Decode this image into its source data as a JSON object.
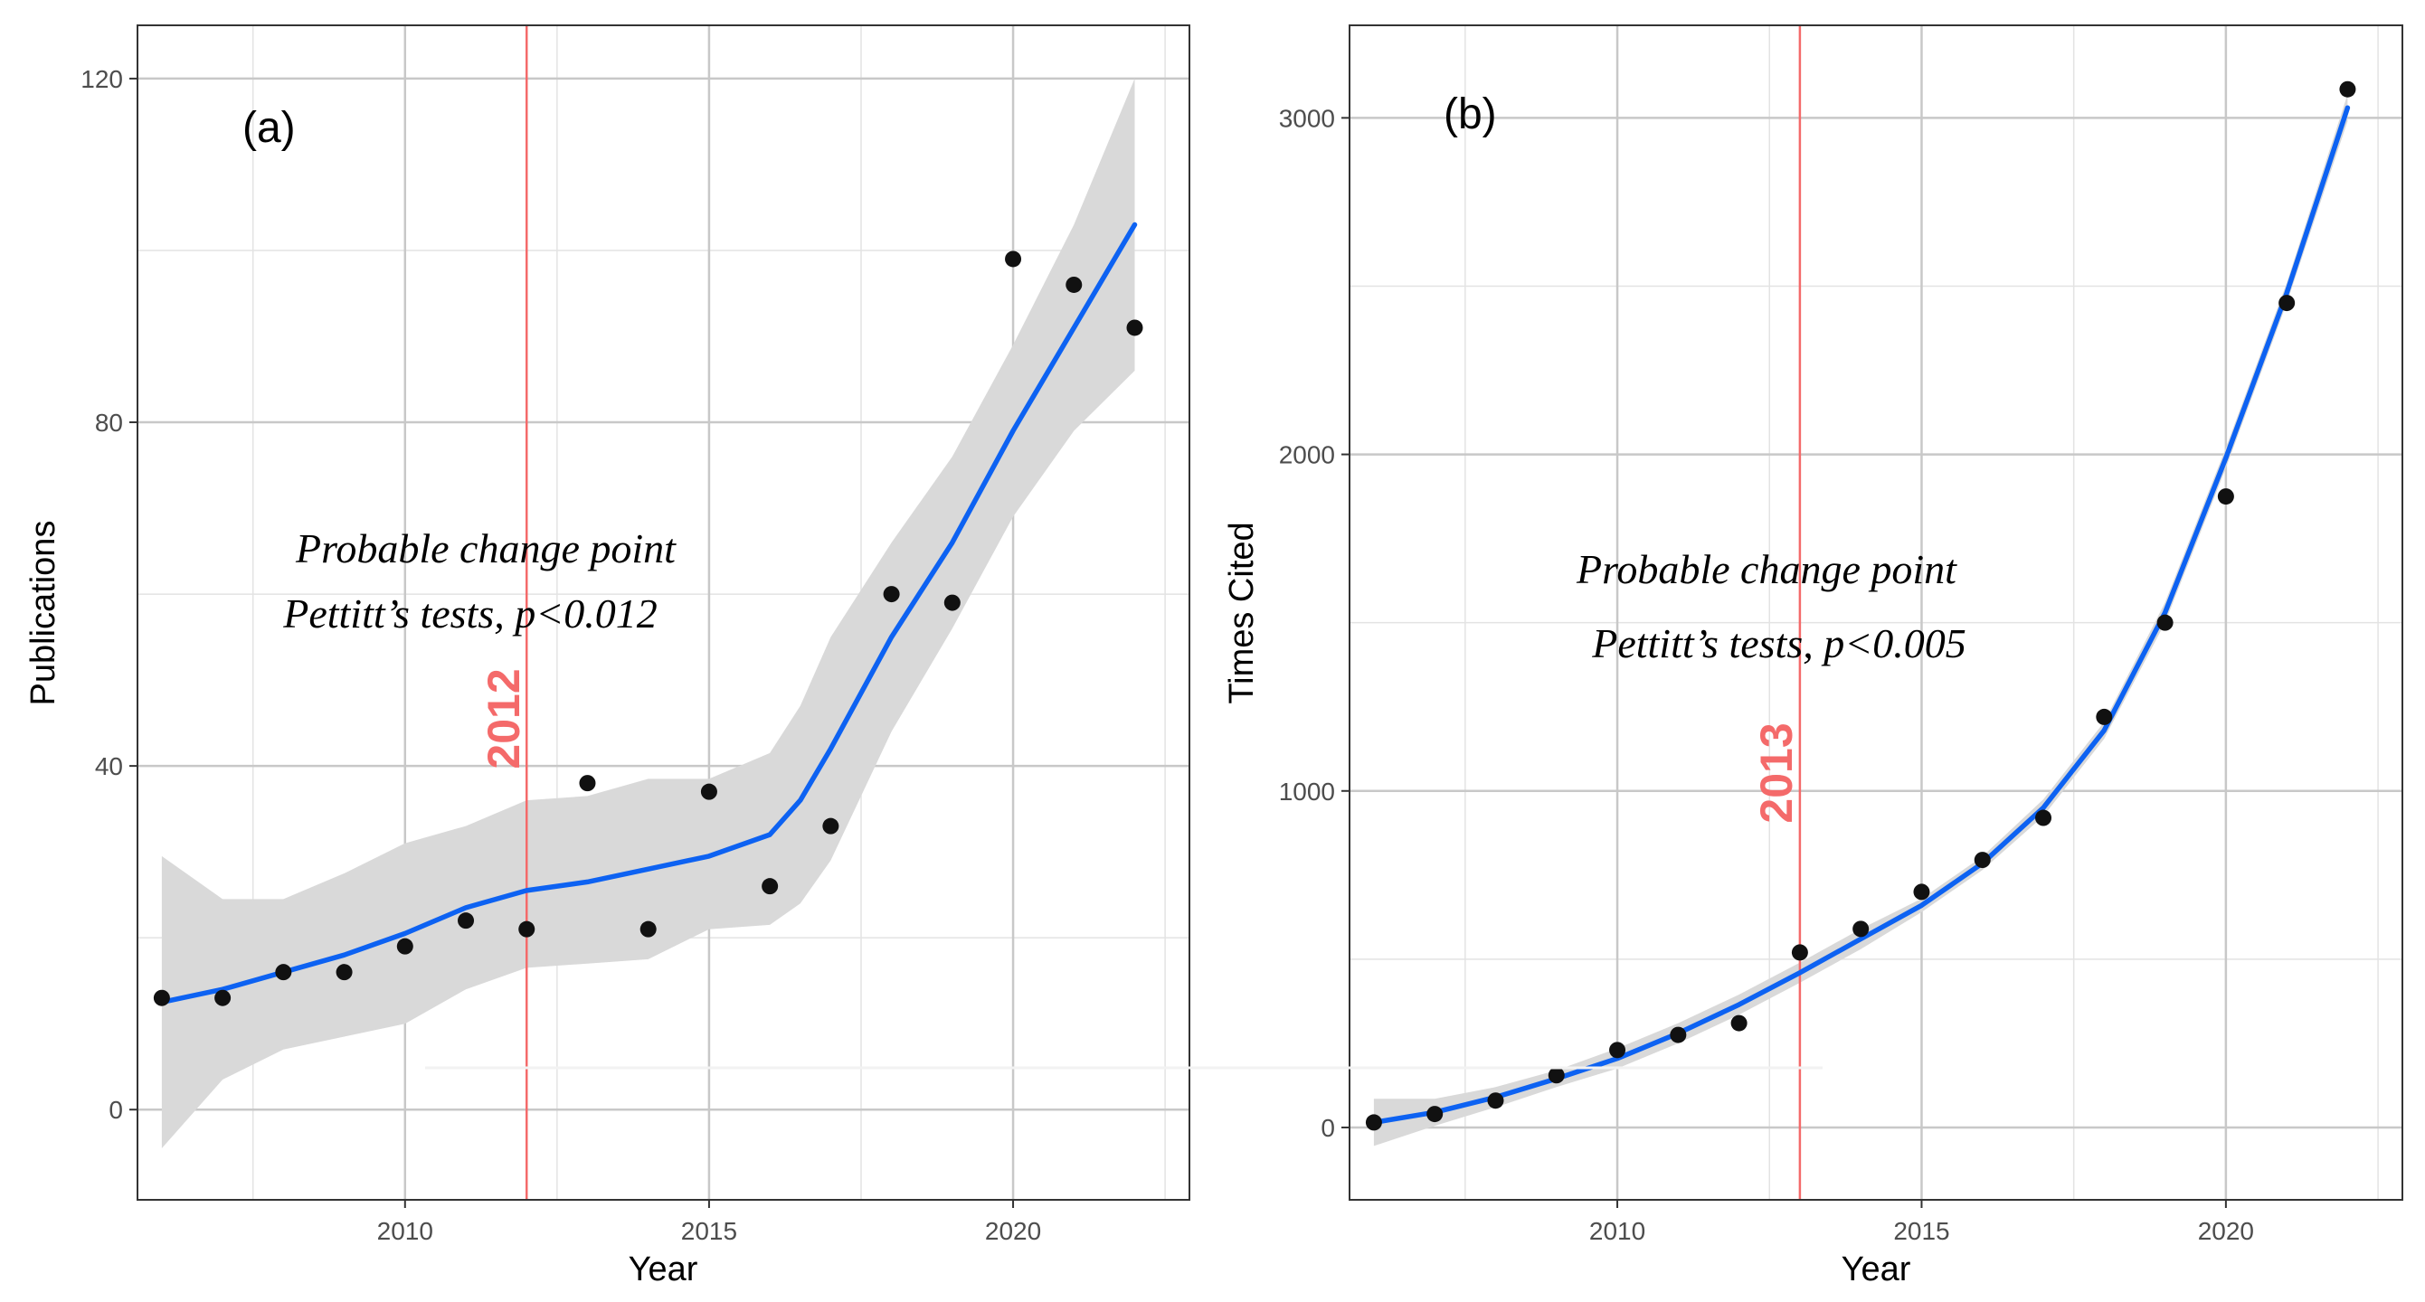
{
  "colors": {
    "smooth_line": "#0d62f2",
    "ribbon": "#d9d9d9",
    "points": "#111111",
    "change_point": "#f46a6a",
    "grid_major": "#c8c8c8",
    "grid_minor": "#e3e3e3",
    "panel_border": "#333333"
  },
  "chart_data": [
    {
      "type": "scatter",
      "panel_label": "(a)",
      "xlabel": "Year",
      "ylabel": "Publications",
      "xlim": [
        2005.6,
        2022.9
      ],
      "ylim": [
        -10.5,
        126.2
      ],
      "x_ticks": [
        2010,
        2015,
        2020
      ],
      "y_ticks": [
        0,
        40,
        80,
        120
      ],
      "x": [
        2006,
        2007,
        2008,
        2009,
        2010,
        2011,
        2012,
        2013,
        2014,
        2015,
        2016,
        2017,
        2018,
        2019,
        2020,
        2021,
        2022
      ],
      "values": [
        13,
        13,
        16,
        16,
        19,
        22,
        21,
        38,
        21,
        37,
        26,
        33,
        60,
        59,
        99,
        96,
        91
      ],
      "smooth": {
        "x": [
          2006,
          2007,
          2008,
          2009,
          2010,
          2011,
          2012,
          2013,
          2014,
          2015,
          2016,
          2016.5,
          2017,
          2018,
          2019,
          2020,
          2021,
          2022
        ],
        "y": [
          12.5,
          14,
          16,
          18,
          20.5,
          23.5,
          25.5,
          26.5,
          28,
          29.5,
          32,
          36,
          42,
          55,
          66,
          79,
          91,
          103
        ],
        "lower": [
          -4.5,
          3.5,
          7,
          8.5,
          10,
          14,
          16.5,
          17,
          17.5,
          21,
          21.5,
          24,
          29,
          44,
          56,
          69,
          79,
          86
        ],
        "upper": [
          29.5,
          24.5,
          24.5,
          27.5,
          31,
          33,
          36,
          36.5,
          38.5,
          38.5,
          41.5,
          47,
          55,
          66,
          76,
          89,
          103,
          120
        ]
      },
      "change_point": {
        "year": 2012,
        "label": "2012"
      },
      "annotation": {
        "line1": "Probable change point",
        "line2": "Pettitt’s tests, p<0.012"
      }
    },
    {
      "type": "scatter",
      "panel_label": "(b)",
      "xlabel": "Year",
      "ylabel": "Times Cited",
      "xlim": [
        2005.6,
        2022.9
      ],
      "ylim": [
        -215,
        3275
      ],
      "x_ticks": [
        2010,
        2015,
        2020
      ],
      "y_ticks": [
        0,
        1000,
        2000,
        3000
      ],
      "x": [
        2006,
        2007,
        2008,
        2009,
        2010,
        2011,
        2012,
        2013,
        2014,
        2015,
        2016,
        2017,
        2018,
        2019,
        2020,
        2021,
        2022
      ],
      "values": [
        15,
        40,
        80,
        155,
        230,
        275,
        310,
        520,
        590,
        700,
        795,
        920,
        1220,
        1500,
        1875,
        2450,
        3085
      ],
      "smooth": {
        "x": [
          2006,
          2007,
          2008,
          2009,
          2010,
          2011,
          2012,
          2013,
          2014,
          2015,
          2016,
          2017,
          2018,
          2019,
          2020,
          2021,
          2022
        ],
        "y": [
          15,
          45,
          90,
          145,
          205,
          280,
          365,
          460,
          560,
          660,
          785,
          950,
          1180,
          1530,
          1990,
          2480,
          3030
        ],
        "lower": [
          -55,
          5,
          60,
          120,
          175,
          250,
          335,
          430,
          530,
          640,
          765,
          925,
          1155,
          1500,
          1960,
          2450,
          2990
        ],
        "upper": [
          85,
          85,
          120,
          170,
          235,
          310,
          395,
          490,
          590,
          680,
          805,
          975,
          1205,
          1560,
          2020,
          2510,
          3070
        ]
      },
      "change_point": {
        "year": 2013,
        "label": "2013"
      },
      "annotation": {
        "line1": "Probable change point",
        "line2": "Pettitt’s tests, p<0.005"
      }
    }
  ]
}
